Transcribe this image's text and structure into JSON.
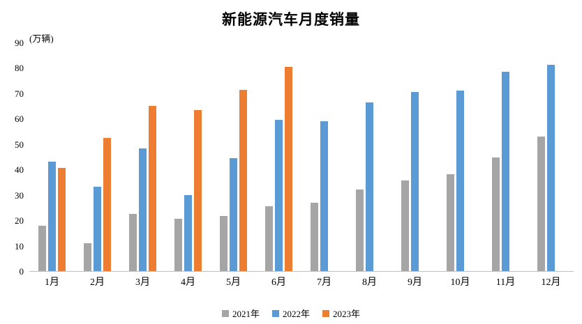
{
  "chart": {
    "title": "新能源汽车月度销量",
    "unit_label": "(万辆)"
  },
  "chart_data": {
    "type": "bar",
    "title": "新能源汽车月度销量",
    "xlabel": "",
    "ylabel": "(万辆)",
    "ylim": [
      0,
      90
    ],
    "ytick_step": 10,
    "grid": false,
    "legend_position": "bottom",
    "categories": [
      "1月",
      "2月",
      "3月",
      "4月",
      "5月",
      "6月",
      "7月",
      "8月",
      "9月",
      "10月",
      "11月",
      "12月"
    ],
    "series": [
      {
        "name": "2021年",
        "color": "#a5a5a5",
        "values": [
          17.9,
          11.0,
          22.6,
          20.6,
          21.7,
          25.6,
          27.1,
          32.1,
          35.7,
          38.3,
          45.0,
          53.1
        ]
      },
      {
        "name": "2022年",
        "color": "#5b9bd5",
        "values": [
          43.1,
          33.4,
          48.4,
          29.9,
          44.7,
          59.6,
          59.3,
          66.6,
          70.8,
          71.4,
          78.6,
          81.4
        ]
      },
      {
        "name": "2023年",
        "color": "#ed7d31",
        "values": [
          40.8,
          52.5,
          65.3,
          63.6,
          71.7,
          80.6,
          null,
          null,
          null,
          null,
          null,
          null
        ]
      }
    ]
  }
}
